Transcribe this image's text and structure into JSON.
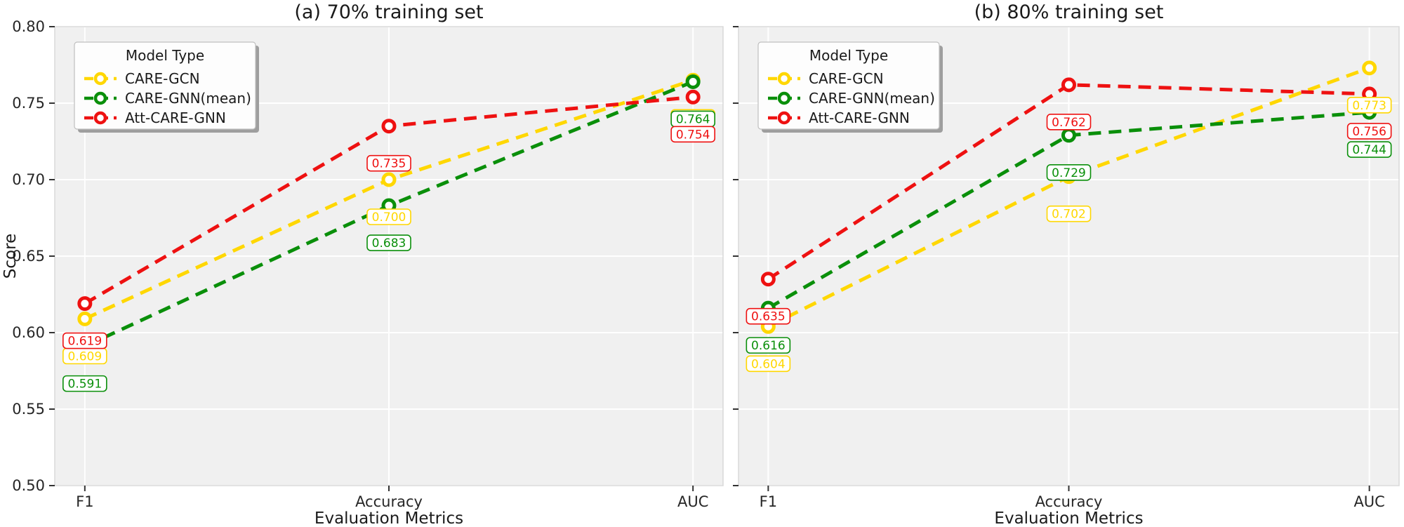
{
  "figure": {
    "kind": "matplotlib-style dual line chart",
    "xlabel": "Evaluation Metrics",
    "ylabel": "Score"
  },
  "chart_data": [
    {
      "type": "line",
      "title": "(a) 70% training set",
      "xlabel": "Evaluation Metrics",
      "ylabel": "Score",
      "categories": [
        "F1",
        "Accuracy",
        "AUC"
      ],
      "ylim": [
        0.5,
        0.8
      ],
      "yticks": [
        "0.50",
        "0.55",
        "0.60",
        "0.65",
        "0.70",
        "0.75",
        "0.80"
      ],
      "ytick_labels_visible": true,
      "grid": true,
      "line_style": "dashed",
      "marker": "open-circle",
      "legend": {
        "title": "Model Type",
        "position": "upper left"
      },
      "series": [
        {
          "name": "CARE-GCN",
          "color": "#FFD700",
          "values": [
            0.609,
            0.7,
            0.765
          ],
          "point_labels": [
            "0.609",
            "0.700",
            "0.765"
          ],
          "label_occluded": [
            false,
            false,
            true
          ]
        },
        {
          "name": "CARE-GNN(mean)",
          "color": "#0a8f0a",
          "values": [
            0.591,
            0.683,
            0.764
          ],
          "point_labels": [
            "0.591",
            "0.683",
            "0.764"
          ],
          "label_occluded": [
            false,
            false,
            false
          ]
        },
        {
          "name": "Att-CARE-GNN",
          "color": "#ee1111",
          "values": [
            0.619,
            0.735,
            0.754
          ],
          "point_labels": [
            "0.619",
            "0.735",
            "0.754"
          ],
          "label_occluded": [
            false,
            false,
            false
          ]
        }
      ]
    },
    {
      "type": "line",
      "title": "(b) 80% training set",
      "xlabel": "Evaluation Metrics",
      "ylabel": null,
      "categories": [
        "F1",
        "Accuracy",
        "AUC"
      ],
      "ylim": [
        0.5,
        0.8
      ],
      "yticks": [
        "0.50",
        "0.55",
        "0.60",
        "0.65",
        "0.70",
        "0.75",
        "0.80"
      ],
      "ytick_labels_visible": false,
      "grid": true,
      "line_style": "dashed",
      "marker": "open-circle",
      "legend": {
        "title": "Model Type",
        "position": "upper left"
      },
      "series": [
        {
          "name": "CARE-GCN",
          "color": "#FFD700",
          "values": [
            0.604,
            0.702,
            0.773
          ],
          "point_labels": [
            "0.604",
            "0.702",
            "0.773"
          ],
          "label_occluded": [
            false,
            false,
            false
          ]
        },
        {
          "name": "CARE-GNN(mean)",
          "color": "#0a8f0a",
          "values": [
            0.616,
            0.729,
            0.744
          ],
          "point_labels": [
            "0.616",
            "0.729",
            "0.744"
          ],
          "label_occluded": [
            false,
            false,
            false
          ]
        },
        {
          "name": "Att-CARE-GNN",
          "color": "#ee1111",
          "values": [
            0.635,
            0.762,
            0.756
          ],
          "point_labels": [
            "0.635",
            "0.762",
            "0.756"
          ],
          "label_occluded": [
            false,
            false,
            false
          ]
        }
      ]
    }
  ],
  "styles": {
    "figure_bg": "#ffffff",
    "plot_bg": "#f0f0f0",
    "grid_color": "#ffffff",
    "spine_color": "#d9d9d9",
    "title_color": "#1a1a1a",
    "tick_text_color": "#262626",
    "tick_mark_color": "#333333",
    "label_box_bg": "#ffffff",
    "legend_bg": "#fdfdfd",
    "legend_border": "#bfbfbf",
    "legend_shadow": "#9e9e9e"
  }
}
